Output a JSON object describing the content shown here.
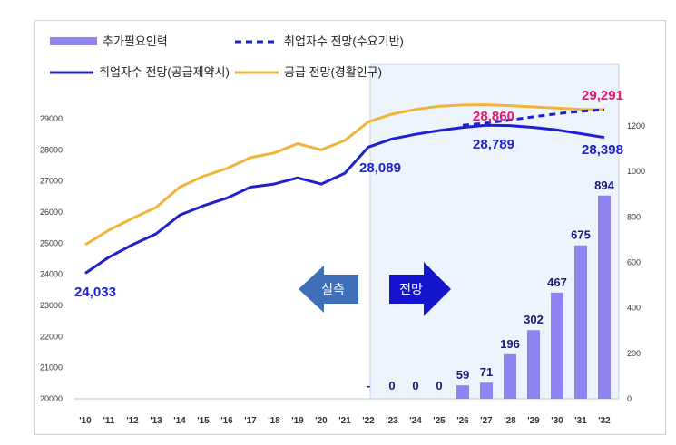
{
  "chart_data": {
    "type": "bar+line",
    "categories": [
      "'10",
      "'11",
      "'12",
      "'13",
      "'14",
      "'15",
      "'16",
      "'17",
      "'18",
      "'19",
      "'20",
      "'21",
      "'22",
      "'23",
      "'24",
      "'25",
      "'26",
      "'27",
      "'28",
      "'29",
      "'30",
      "'31",
      "'32"
    ],
    "left_axis": {
      "ylim": [
        20000,
        29000
      ],
      "ticks": [
        "20000",
        "21000",
        "22000",
        "23000",
        "24000",
        "25000",
        "26000",
        "27000",
        "28000",
        "29000"
      ]
    },
    "right_axis": {
      "ylim": [
        0,
        1200
      ],
      "ticks": [
        "0",
        "200",
        "400",
        "600",
        "800",
        "1000",
        "1200"
      ]
    },
    "legend": [
      {
        "label": "추가필요인력",
        "style": "bar",
        "color": "#8f84f2"
      },
      {
        "label": "취업자수 전망(수요기반)",
        "style": "dashed",
        "color": "#1f22cc"
      },
      {
        "label": "취업자수 전망(공급제약시)",
        "style": "solid",
        "color": "#1f22cc"
      },
      {
        "label": "공급 전망(경활인구)",
        "style": "solid",
        "color": "#f0b43a"
      }
    ],
    "series": [
      {
        "name": "추가필요인력",
        "axis": "right",
        "values": [
          null,
          null,
          null,
          null,
          null,
          null,
          null,
          null,
          null,
          null,
          null,
          null,
          null,
          0,
          0,
          0,
          59,
          71,
          196,
          302,
          467,
          675,
          894
        ]
      },
      {
        "name": "취업자수 전망(수요기반)",
        "axis": "left",
        "values": [
          null,
          null,
          null,
          null,
          null,
          null,
          null,
          null,
          null,
          null,
          null,
          null,
          null,
          null,
          null,
          null,
          28790,
          28860,
          28960,
          29060,
          29160,
          29240,
          29291
        ]
      },
      {
        "name": "취업자수 전망(공급제약시)",
        "axis": "left",
        "values": [
          24033,
          24550,
          24950,
          25300,
          25900,
          26200,
          26450,
          26800,
          26900,
          27100,
          26900,
          27250,
          28089,
          28350,
          28500,
          28620,
          28720,
          28789,
          28780,
          28720,
          28640,
          28520,
          28398
        ]
      },
      {
        "name": "공급 전망(경활인구)",
        "axis": "left",
        "values": [
          24950,
          25420,
          25800,
          26150,
          26800,
          27150,
          27400,
          27750,
          27900,
          28200,
          28000,
          28300,
          28900,
          29150,
          29300,
          29400,
          29440,
          29450,
          29420,
          29380,
          29340,
          29300,
          29291
        ]
      }
    ],
    "bar_labels": [
      "-",
      "0",
      "0",
      "0",
      "59",
      "71",
      "196",
      "302",
      "467",
      "675",
      "894"
    ],
    "line_labels": {
      "start": "24,033",
      "y22": "28,089",
      "demand27": "28,860",
      "supply27": "28,789",
      "demand32": "29,291",
      "supply32": "28,398"
    },
    "annotations": {
      "past": "실측",
      "future": "전망"
    },
    "colors": {
      "bar": "#8f84f2",
      "employ": "#1f22cc",
      "supply": "#f0b43a",
      "highlight": "#e6166e",
      "arrow": "#3f6fb8",
      "shade": "#eef4fc"
    }
  }
}
